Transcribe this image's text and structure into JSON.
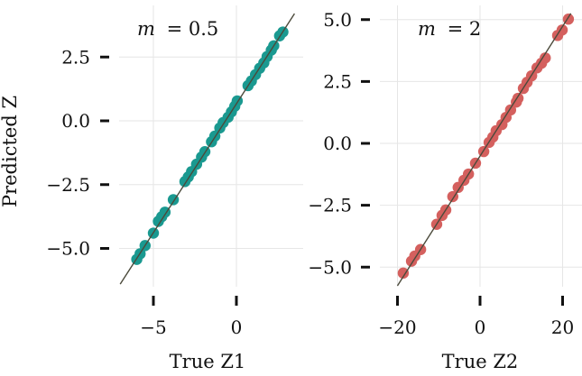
{
  "chart_data": [
    {
      "type": "scatter",
      "title": "",
      "annotation": "m = 0.5",
      "annotation_var": "m",
      "annotation_value": "= 0.5",
      "xlabel": "True Z1",
      "ylabel": "Predicted Z",
      "xticks": [
        -5,
        0
      ],
      "xtick_labels": [
        "−5",
        "0"
      ],
      "yticks": [
        2.5,
        0.0,
        -2.5,
        -5.0
      ],
      "ytick_labels": [
        "2.5",
        "0.0",
        "−2.5",
        "−5.0"
      ],
      "xlim": [
        -7.0,
        4.0
      ],
      "ylim": [
        -6.5,
        4.5
      ],
      "grid": true,
      "marker_color": "#1a9990",
      "line_color": "#4b4a3b",
      "identity_line": {
        "x": [
          -7.0,
          3.5
        ],
        "y": [
          -6.4,
          4.2
        ]
      },
      "points": {
        "x": [
          -6.0,
          -5.8,
          -5.5,
          -5.0,
          -4.7,
          -4.5,
          -4.3,
          -3.8,
          -3.1,
          -2.9,
          -2.7,
          -2.4,
          -2.1,
          -1.9,
          -1.5,
          -1.3,
          -1.0,
          -0.8,
          -0.5,
          -0.3,
          -0.1,
          0.05,
          0.7,
          0.9,
          1.15,
          1.4,
          1.65,
          1.85,
          2.1,
          2.25,
          2.6,
          2.8
        ],
        "y": [
          -5.43,
          -5.21,
          -4.89,
          -4.4,
          -3.94,
          -3.76,
          -3.58,
          -3.09,
          -2.38,
          -2.2,
          -1.99,
          -1.7,
          -1.42,
          -1.21,
          -0.82,
          -0.6,
          -0.28,
          -0.07,
          0.14,
          0.35,
          0.57,
          0.78,
          1.38,
          1.56,
          1.81,
          2.06,
          2.27,
          2.52,
          2.77,
          2.94,
          3.33,
          3.48
        ]
      }
    },
    {
      "type": "scatter",
      "title": "",
      "annotation": "m = 2",
      "annotation_var": "m",
      "annotation_value": "= 2",
      "xlabel": "True Z2",
      "ylabel": "",
      "xticks": [
        -20,
        0,
        20
      ],
      "xtick_labels": [
        "−20",
        "0",
        "20"
      ],
      "yticks": [
        5.0,
        2.5,
        0.0,
        -2.5,
        -5.0
      ],
      "ytick_labels": [
        "5.0",
        "2.5",
        "0.0",
        "−2.5",
        "−5.0"
      ],
      "xlim": [
        -21,
        23
      ],
      "ylim": [
        -6.2,
        5.8
      ],
      "grid": true,
      "marker_color": "#d4605e",
      "line_color": "#4b4a3b",
      "identity_line": {
        "x": [
          -20.0,
          22.0
        ],
        "y": [
          -5.75,
          5.25
        ]
      },
      "points": {
        "x": [
          -18.6,
          -16.6,
          -15.8,
          -14.4,
          -10.5,
          -9.2,
          -8.3,
          -6.6,
          -5.3,
          -3.9,
          -2.8,
          -1.1,
          0.9,
          2.2,
          3.1,
          3.9,
          5.3,
          6.3,
          7.4,
          8.8,
          9.2,
          10.5,
          11.4,
          12.5,
          13.8,
          14.9,
          15.8,
          18.8,
          19.9,
          21.4
        ],
        "y": [
          -5.24,
          -4.76,
          -4.55,
          -4.29,
          -3.27,
          -2.91,
          -2.69,
          -2.15,
          -1.78,
          -1.49,
          -1.24,
          -0.8,
          -0.33,
          0.04,
          0.25,
          0.51,
          0.76,
          1.05,
          1.35,
          1.67,
          1.82,
          2.22,
          2.47,
          2.73,
          3.05,
          3.24,
          3.45,
          4.36,
          4.58,
          5.02
        ]
      }
    }
  ]
}
